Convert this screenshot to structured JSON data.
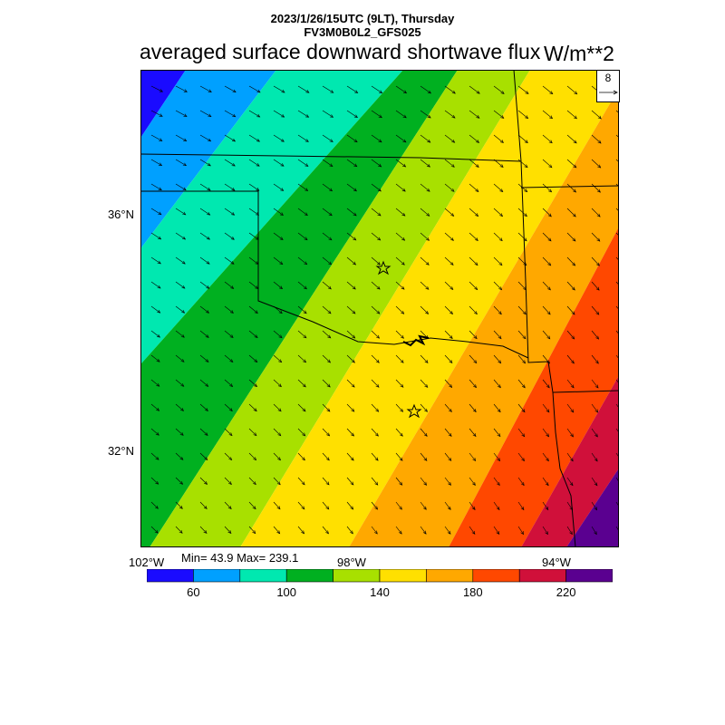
{
  "header": {
    "datetime": "2023/1/26/15UTC (9LT), Thursday",
    "model": "FV3M0B0L2_GFS025",
    "title": "averaged surface downward shortwave flux",
    "units": "W/m**2"
  },
  "map": {
    "lat_labels": [
      "36°N",
      "32°N"
    ],
    "lon_labels": [
      "102°W",
      "98°W",
      "94°W"
    ],
    "min_max": "Min= 43.9 Max= 239.1",
    "vector_reference": "8",
    "field_min": 43.9,
    "field_max": 239.1,
    "gradient_direction": "increasing toward southeast",
    "vector_direction": "toward southeast"
  },
  "colorbar": {
    "colors": [
      "#1a0bff",
      "#00a0ff",
      "#00e8b0",
      "#00b020",
      "#a8e000",
      "#ffe000",
      "#ffa800",
      "#ff4800",
      "#d0103a",
      "#5a0090"
    ],
    "bounds": [
      40,
      60,
      80,
      100,
      120,
      140,
      160,
      180,
      200,
      220,
      240
    ],
    "tick_labels": [
      "60",
      "100",
      "140",
      "180",
      "220"
    ]
  }
}
